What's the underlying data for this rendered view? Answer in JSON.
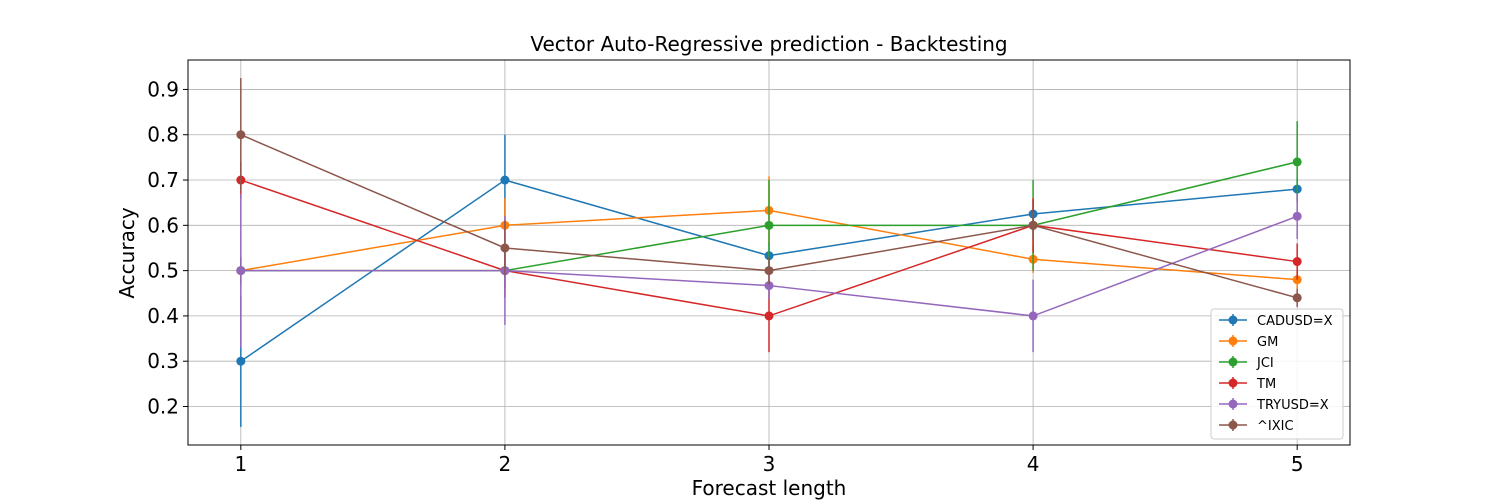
{
  "chart_data": {
    "type": "line",
    "title": "Vector Auto-Regressive prediction - Backtesting",
    "xlabel": "Forecast length",
    "ylabel": "Accuracy",
    "x": [
      1,
      2,
      3,
      4,
      5
    ],
    "xlim": [
      0.8,
      5.2
    ],
    "ylim": [
      0.115,
      0.965
    ],
    "yticks": [
      0.2,
      0.3,
      0.4,
      0.5,
      0.6,
      0.7,
      0.8,
      0.9
    ],
    "grid": true,
    "legend_position": "lower-right",
    "series": [
      {
        "name": "CADUSD=X",
        "color": "#1f77b4",
        "values": [
          0.3,
          0.7,
          0.533,
          0.625,
          0.68
        ],
        "error": [
          0.145,
          0.1,
          0.03,
          0.03,
          0.025
        ]
      },
      {
        "name": "GM",
        "color": "#ff7f0e",
        "values": [
          0.5,
          0.6,
          0.633,
          0.525,
          0.48
        ],
        "error": [
          0.03,
          0.06,
          0.075,
          0.03,
          0.02
        ]
      },
      {
        "name": "JCI",
        "color": "#2ca02c",
        "values": [
          0.5,
          0.5,
          0.6,
          0.6,
          0.74
        ],
        "error": [
          0.03,
          0.04,
          0.1,
          0.1,
          0.09
        ]
      },
      {
        "name": "TM",
        "color": "#d62728",
        "values": [
          0.7,
          0.5,
          0.4,
          0.6,
          0.52
        ],
        "error": [
          0.04,
          0.06,
          0.08,
          0.06,
          0.04
        ]
      },
      {
        "name": "TRYUSD=X",
        "color": "#9467bd",
        "values": [
          0.5,
          0.5,
          0.467,
          0.4,
          0.62
        ],
        "error": [
          0.17,
          0.12,
          0.03,
          0.08,
          0.05
        ]
      },
      {
        "name": "^IXIC",
        "color": "#8c564b",
        "values": [
          0.8,
          0.55,
          0.5,
          0.6,
          0.44
        ],
        "error": [
          0.125,
          0.06,
          0.03,
          0.03,
          0.02
        ]
      }
    ]
  }
}
